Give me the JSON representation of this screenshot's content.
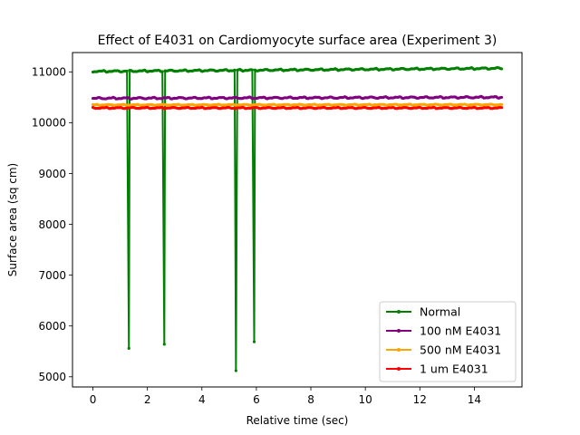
{
  "chart_data": {
    "type": "line",
    "title": "Effect of E4031 on Cardiomyocyte surface area (Experiment 3)",
    "xlabel": "Relative time (sec)",
    "ylabel": "Surface area (sq cm)",
    "xlim": [
      -0.75,
      15.75
    ],
    "ylim": [
      4800,
      11380
    ],
    "xticks": [
      0,
      2,
      4,
      6,
      8,
      10,
      12,
      14
    ],
    "yticks": [
      5000,
      6000,
      7000,
      8000,
      9000,
      10000,
      11000
    ],
    "grid": false,
    "legend_position": "lower-right",
    "x_range": [
      0,
      15
    ],
    "series": [
      {
        "name": "Normal",
        "color": "#008000",
        "baseline": 11010,
        "drift": 60,
        "ripple": 28,
        "period": 0.5,
        "dips": [
          {
            "x": 1.32,
            "y": 5560
          },
          {
            "x": 2.62,
            "y": 5640
          },
          {
            "x": 5.25,
            "y": 5120
          },
          {
            "x": 5.92,
            "y": 5690
          }
        ]
      },
      {
        "name": "100 nM E4031",
        "color": "#800080",
        "baseline": 10480,
        "drift": 20,
        "ripple": 30,
        "period": 0.5,
        "dips": []
      },
      {
        "name": "500 nM E4031",
        "color": "#ffa500",
        "baseline": 10350,
        "drift": 5,
        "ripple": 18,
        "period": 0.5,
        "dips": []
      },
      {
        "name": "1 um E4031",
        "color": "#ff0000",
        "baseline": 10290,
        "drift": 0,
        "ripple": 22,
        "period": 0.5,
        "dips": []
      }
    ]
  }
}
